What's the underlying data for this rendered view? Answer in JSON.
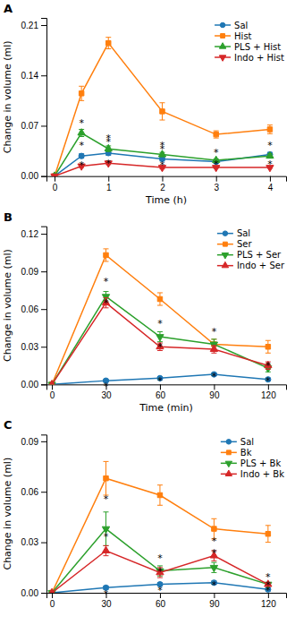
{
  "chart_data": [
    {
      "type": "line",
      "title": "A",
      "xlabel": "Time (h)",
      "ylabel": "Change in volume (ml)",
      "xlim": [
        -0.15,
        4.3
      ],
      "xticks": [
        0,
        1,
        2,
        3,
        4
      ],
      "ylim": [
        0,
        0.22
      ],
      "yticks": [
        {
          "value": 0,
          "label": "0.00"
        },
        0.07,
        0.14,
        0.21
      ],
      "legend": "upper right",
      "x": [
        0,
        0.5,
        1,
        2,
        3,
        4
      ],
      "series": [
        {
          "name": "Sal",
          "marker": "circle",
          "values": [
            0.0,
            0.028,
            0.032,
            0.024,
            0.02,
            0.03
          ],
          "errors": [
            0,
            0.003,
            0.003,
            0.003,
            0.002,
            0.003
          ]
        },
        {
          "name": "Hist",
          "marker": "square",
          "values": [
            0.0,
            0.115,
            0.185,
            0.09,
            0.058,
            0.065
          ],
          "errors": [
            0,
            0.01,
            0.008,
            0.012,
            0.005,
            0.006
          ]
        },
        {
          "name": "PLS + Hist",
          "marker": "triangle-up",
          "values": [
            0.0,
            0.06,
            0.038,
            0.03,
            0.022,
            0.028
          ],
          "errors": [
            0,
            0.005,
            0.004,
            0.003,
            0.002,
            0.003
          ]
        },
        {
          "name": "Indo + Hist",
          "marker": "triangle-down",
          "values": [
            0.0,
            0.014,
            0.018,
            0.012,
            0.012,
            0.012
          ],
          "errors": [
            0,
            0.002,
            0.002,
            0.002,
            0.001,
            0.001
          ]
        }
      ],
      "annotations": [
        {
          "x": 0.5,
          "y": 0.035,
          "text": "*"
        },
        {
          "x": 0.5,
          "y": 0.066,
          "text": "*"
        },
        {
          "x": 0.5,
          "y": 0.007,
          "text": "*"
        },
        {
          "x": 1.0,
          "y": 0.04,
          "text": "*"
        },
        {
          "x": 1.0,
          "y": 0.044,
          "text": "*"
        },
        {
          "x": 1.0,
          "y": 0.009,
          "text": "*"
        },
        {
          "x": 2.0,
          "y": 0.03,
          "text": "*"
        },
        {
          "x": 2.0,
          "y": 0.035,
          "text": "*"
        },
        {
          "x": 2.0,
          "y": 0.007,
          "text": "*"
        },
        {
          "x": 3.0,
          "y": 0.024,
          "text": "*"
        },
        {
          "x": 3.0,
          "y": 0.008,
          "text": "*"
        },
        {
          "x": 4.0,
          "y": 0.034,
          "text": "*"
        },
        {
          "x": 4.0,
          "y": 0.008,
          "text": "*"
        }
      ]
    },
    {
      "type": "line",
      "title": "B",
      "xlabel": "Time (min)",
      "ylabel": "Change in volume (ml)",
      "xlim": [
        -3,
        130
      ],
      "xticks": [
        0,
        30,
        60,
        90,
        120
      ],
      "ylim": [
        0,
        0.126
      ],
      "yticks": [
        {
          "value": 0,
          "label": "0.00"
        },
        0.03,
        0.06,
        0.09,
        0.12
      ],
      "legend": "upper right",
      "x": [
        0,
        30,
        60,
        90,
        120
      ],
      "series": [
        {
          "name": "Sal",
          "marker": "circle",
          "values": [
            0.0,
            0.003,
            0.005,
            0.008,
            0.004
          ],
          "errors": [
            0,
            0.001,
            0.001,
            0.001,
            0.001
          ]
        },
        {
          "name": "Ser",
          "marker": "square",
          "values": [
            0.0,
            0.103,
            0.068,
            0.032,
            0.03
          ],
          "errors": [
            0,
            0.005,
            0.005,
            0.004,
            0.005
          ]
        },
        {
          "name": "PLS + Ser",
          "marker": "triangle-down",
          "values": [
            0.0,
            0.07,
            0.038,
            0.032,
            0.013
          ],
          "errors": [
            0,
            0.004,
            0.004,
            0.004,
            0.003
          ]
        },
        {
          "name": "Indo + Ser",
          "marker": "triangle-up",
          "values": [
            0.0,
            0.065,
            0.03,
            0.028,
            0.015
          ],
          "errors": [
            0,
            0.004,
            0.003,
            0.003,
            0.003
          ]
        }
      ],
      "annotations": [
        {
          "x": 30,
          "y": -0.006,
          "text": "*"
        },
        {
          "x": 30,
          "y": 0.077,
          "text": "*"
        },
        {
          "x": 30,
          "y": 0.06,
          "text": "*"
        },
        {
          "x": 60,
          "y": -0.002,
          "text": "*"
        },
        {
          "x": 60,
          "y": 0.044,
          "text": "*"
        },
        {
          "x": 60,
          "y": 0.025,
          "text": "*"
        },
        {
          "x": 90,
          "y": 0.002,
          "text": "*"
        },
        {
          "x": 90,
          "y": 0.037,
          "text": "*"
        },
        {
          "x": 120,
          "y": -0.002,
          "text": "*"
        },
        {
          "x": 120,
          "y": 0.01,
          "text": "*"
        }
      ]
    },
    {
      "type": "line",
      "title": "C",
      "ylabel": "Change in volume (ml)",
      "xlim": [
        -3,
        130
      ],
      "xticks": [
        0,
        30,
        60,
        90,
        120
      ],
      "ylim": [
        0,
        0.094
      ],
      "yticks": [
        {
          "value": 0,
          "label": "0.00"
        },
        0.03,
        0.06,
        0.09
      ],
      "legend": "upper right",
      "x": [
        0,
        30,
        60,
        90,
        120
      ],
      "series": [
        {
          "name": "Sal",
          "marker": "circle",
          "values": [
            0.0,
            0.003,
            0.005,
            0.006,
            0.002
          ],
          "errors": [
            0,
            0.001,
            0.001,
            0.001,
            0.001
          ]
        },
        {
          "name": "Bk",
          "marker": "square",
          "values": [
            0.0,
            0.068,
            0.058,
            0.038,
            0.035
          ],
          "errors": [
            0,
            0.01,
            0.006,
            0.006,
            0.005
          ]
        },
        {
          "name": "PLS + Bk",
          "marker": "triangle-down",
          "values": [
            0.0,
            0.038,
            0.013,
            0.015,
            0.005
          ],
          "errors": [
            0,
            0.01,
            0.003,
            0.003,
            0.001
          ]
        },
        {
          "name": "Indo + Bk",
          "marker": "triangle-up",
          "values": [
            0.0,
            0.025,
            0.012,
            0.022,
            0.005
          ],
          "errors": [
            0,
            0.003,
            0.003,
            0.003,
            0.001
          ]
        }
      ],
      "annotations": [
        {
          "x": 30,
          "y": -0.004,
          "text": "*"
        },
        {
          "x": 30,
          "y": 0.052,
          "text": "*"
        },
        {
          "x": 30,
          "y": 0.03,
          "text": "*"
        },
        {
          "x": 60,
          "y": -0.002,
          "text": "*"
        },
        {
          "x": 60,
          "y": 0.017,
          "text": "*"
        },
        {
          "x": 60,
          "y": 0.009,
          "text": "*"
        },
        {
          "x": 90,
          "y": 0.001,
          "text": "*"
        },
        {
          "x": 90,
          "y": 0.02,
          "text": "*"
        },
        {
          "x": 90,
          "y": 0.027,
          "text": "*"
        },
        {
          "x": 120,
          "y": -0.002,
          "text": "*"
        },
        {
          "x": 120,
          "y": 0.001,
          "text": "*"
        },
        {
          "x": 120,
          "y": 0.006,
          "text": "*"
        }
      ]
    }
  ]
}
